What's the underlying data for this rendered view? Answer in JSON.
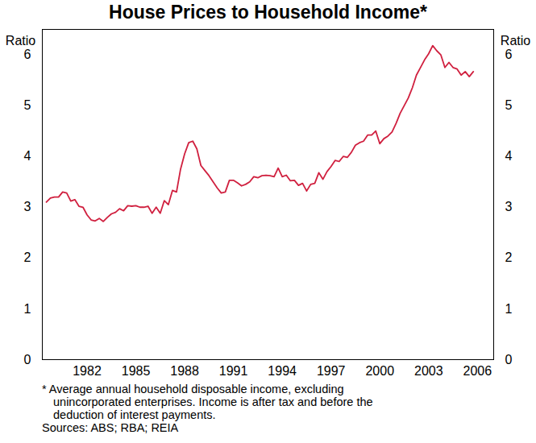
{
  "chart_data": {
    "type": "line",
    "title": "House Prices to Household Income*",
    "ylabel": "Ratio",
    "y2label": "Ratio",
    "footnote": "* Average annual household disposable income, excluding unincorporated enterprises. Income is after tax and before the deduction of interest payments.",
    "source": "Sources: ABS; RBA; REIA",
    "xlim": [
      1979.75,
      2007.5
    ],
    "xticks": [
      {
        "value": 1982.5,
        "label": "1982"
      },
      {
        "value": 1985.5,
        "label": "1985"
      },
      {
        "value": 1988.5,
        "label": "1988"
      },
      {
        "value": 1991.5,
        "label": "1991"
      },
      {
        "value": 1994.5,
        "label": "1994"
      },
      {
        "value": 1997.5,
        "label": "1997"
      },
      {
        "value": 2000.5,
        "label": "2000"
      },
      {
        "value": 2003.5,
        "label": "2003"
      },
      {
        "value": 2006.5,
        "label": "2006"
      }
    ],
    "ylim": [
      0,
      6.5
    ],
    "yticks": [
      0,
      1,
      2,
      3,
      4,
      5,
      6
    ],
    "y2lim": [
      0,
      6.5
    ],
    "y2ticks": [
      0,
      1,
      2,
      3,
      4,
      5,
      6
    ],
    "grid": false,
    "x": [
      1980.0,
      1980.25,
      1980.5,
      1980.75,
      1981.0,
      1981.25,
      1981.5,
      1981.75,
      1982.0,
      1982.25,
      1982.5,
      1982.75,
      1983.0,
      1983.25,
      1983.5,
      1983.75,
      1984.0,
      1984.25,
      1984.5,
      1984.75,
      1985.0,
      1985.25,
      1985.5,
      1985.75,
      1986.0,
      1986.25,
      1986.5,
      1986.75,
      1987.0,
      1987.25,
      1987.5,
      1987.75,
      1988.0,
      1988.25,
      1988.5,
      1988.75,
      1989.0,
      1989.25,
      1989.5,
      1989.75,
      1990.0,
      1990.25,
      1990.5,
      1990.75,
      1991.0,
      1991.25,
      1991.5,
      1991.75,
      1992.0,
      1992.25,
      1992.5,
      1992.75,
      1993.0,
      1993.25,
      1993.5,
      1993.75,
      1994.0,
      1994.25,
      1994.5,
      1994.75,
      1995.0,
      1995.25,
      1995.5,
      1995.75,
      1996.0,
      1996.25,
      1996.5,
      1996.75,
      1997.0,
      1997.25,
      1997.5,
      1997.75,
      1998.0,
      1998.25,
      1998.5,
      1998.75,
      1999.0,
      1999.25,
      1999.5,
      1999.75,
      2000.0,
      2000.25,
      2000.5,
      2000.75,
      2001.0,
      2001.25,
      2001.5,
      2001.75,
      2002.0,
      2002.25,
      2002.5,
      2002.75,
      2003.0,
      2003.25,
      2003.5,
      2003.75,
      2004.0,
      2004.25,
      2004.5,
      2004.75,
      2005.0,
      2005.25,
      2005.5,
      2005.75,
      2006.0,
      2006.25
    ],
    "series": [
      {
        "name": "House prices to household income",
        "color": "#d0203f",
        "values": [
          3.1,
          3.18,
          3.2,
          3.2,
          3.3,
          3.28,
          3.12,
          3.15,
          3.02,
          3.0,
          2.85,
          2.75,
          2.73,
          2.78,
          2.72,
          2.8,
          2.87,
          2.9,
          2.97,
          2.93,
          3.03,
          3.02,
          3.03,
          3.0,
          3.0,
          3.02,
          2.88,
          3.0,
          2.88,
          3.13,
          3.05,
          3.33,
          3.3,
          3.75,
          4.05,
          4.27,
          4.3,
          4.15,
          3.82,
          3.72,
          3.62,
          3.5,
          3.38,
          3.28,
          3.3,
          3.53,
          3.53,
          3.48,
          3.42,
          3.45,
          3.5,
          3.6,
          3.58,
          3.62,
          3.63,
          3.62,
          3.6,
          3.77,
          3.6,
          3.63,
          3.52,
          3.53,
          3.43,
          3.47,
          3.32,
          3.45,
          3.47,
          3.68,
          3.55,
          3.7,
          3.8,
          3.92,
          3.9,
          4.0,
          3.98,
          4.08,
          4.22,
          4.27,
          4.3,
          4.42,
          4.42,
          4.5,
          4.25,
          4.35,
          4.4,
          4.48,
          4.65,
          4.85,
          5.0,
          5.15,
          5.35,
          5.6,
          5.75,
          5.9,
          6.02,
          6.18,
          6.08,
          6.0,
          5.75,
          5.85,
          5.75,
          5.72,
          5.6,
          5.67,
          5.57,
          5.67
        ]
      }
    ]
  }
}
